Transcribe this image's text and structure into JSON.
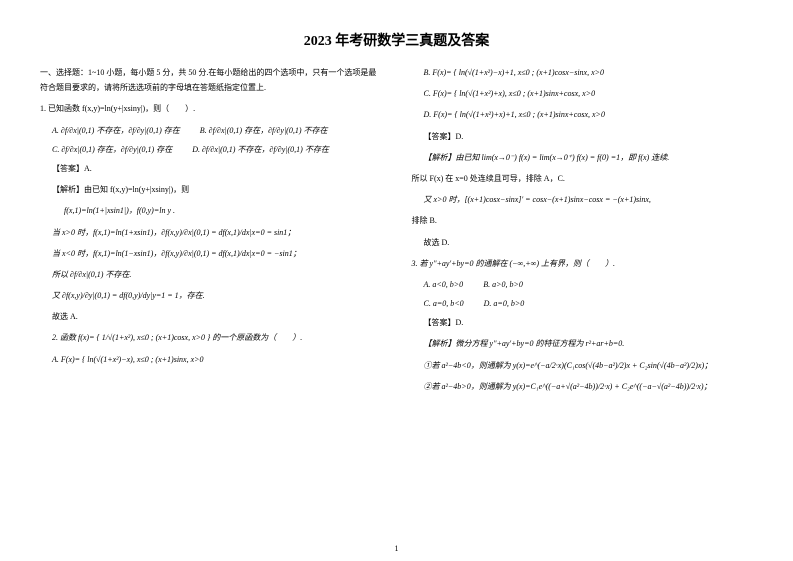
{
  "title": "2023 年考研数学三真题及答案",
  "section_header": "一、选择题：1~10 小题，每小题 5 分，共 50 分.在每小题给出的四个选项中，只有一个选项是最符合题目要求的，请将所选选项前的字母填在答题纸指定位置上.",
  "q1": {
    "stem": "1. 已知函数 f(x,y)=ln(y+|xsiny|)，则（　　）.",
    "optA": "A. ∂f/∂x|(0,1) 不存在，∂f/∂y|(0,1) 存在",
    "optB": "B. ∂f/∂x|(0,1) 存在，∂f/∂y|(0,1) 不存在",
    "optC": "C. ∂f/∂x|(0,1) 存在，∂f/∂y|(0,1) 存在",
    "optD": "D. ∂f/∂x|(0,1) 不存在，∂f/∂y|(0,1) 不存在",
    "answer": "【答案】A.",
    "analysis_lead": "【解析】由已知 f(x,y)=ln(y+|xsiny|)，则",
    "line_f1": "f(x,1)=ln(1+|xsin1|)，f(0,y)=ln y .",
    "line_case1": "当 x>0 时，f(x,1)=ln(1+xsin1)，∂f(x,y)/∂x|(0,1) = df(x,1)/dx|x=0 = sin1；",
    "line_case2": "当 x<0 时，f(x,1)=ln(1−xsin1)，∂f(x,y)/∂x|(0,1) = df(x,1)/dx|x=0 = −sin1；",
    "line_so1": "所以 ∂f/∂x|(0,1) 不存在.",
    "line_so2": "又 ∂f(x,y)/∂y|(0,1) = df(0,y)/dy|y=1 = 1，存在.",
    "line_so3": "故选 A."
  },
  "q2": {
    "stem": "2. 函数 f(x)= { 1/√(1+x²), x≤0 ; (x+1)cosx, x>0 } 的一个原函数为（　　）.",
    "optA": "A. F(x)= { ln(√(1+x²)−x), x≤0 ; (x+1)sinx, x>0",
    "optB": "B. F(x)= { ln(√(1+x²)−x)+1, x≤0 ; (x+1)cosx−sinx, x>0",
    "optC": "C. F(x)= { ln(√(1+x²)+x), x≤0 ; (x+1)sinx+cosx, x>0",
    "optD": "D. F(x)= { ln(√(1+x²)+x)+1, x≤0 ; (x+1)sinx+cosx, x>0",
    "answer": "【答案】D.",
    "analysis_lead": "【解析】由已知 lim(x→0⁻) f(x) = lim(x→0⁺) f(x) = f(0) =1，即 f(x) 连续.",
    "line1": "所以 F(x) 在 x=0 处连续且可导，排除 A，C.",
    "line2": "又 x>0 时，[(x+1)cosx−sinx]' = cosx−(x+1)sinx−cosx = −(x+1)sinx,",
    "line3": "排除 B.",
    "line4": "故选 D."
  },
  "q3": {
    "stem": "3. 若 y''+ay'+by=0 的通解在 (−∞,+∞) 上有界，则（　　）.",
    "optA": "A. a<0, b>0",
    "optB": "B. a>0, b>0",
    "optC": "C. a=0, b<0",
    "optD": "D. a=0, b>0",
    "answer": "【答案】D.",
    "analysis_lead": "【解析】微分方程 y''+ay'+by=0 的特征方程为 r²+ar+b=0.",
    "case1": "①若 a²−4b<0，则通解为 y(x)=e^(−a/2·x)(C₁cos(√(4b−a²)/2)x + C₂sin(√(4b−a²)/2)x)；",
    "case2": "②若 a²−4b>0，则通解为 y(x)=C₁e^((−a+√(a²−4b))/2·x) + C₂e^((−a−√(a²−4b))/2·x)；"
  },
  "page_number": "1"
}
